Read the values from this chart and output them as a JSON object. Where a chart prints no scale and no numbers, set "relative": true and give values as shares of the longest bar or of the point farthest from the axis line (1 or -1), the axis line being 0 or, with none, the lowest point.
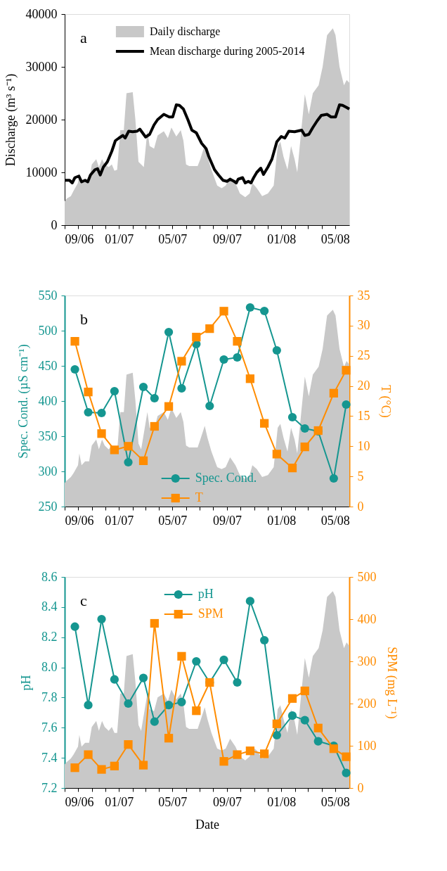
{
  "chart_data": [
    {
      "type": "area",
      "xlim": [
        "2006-09-01",
        "2008-06-02"
      ],
      "xticks": [
        {
          "value": "2006-09",
          "label": "09/06"
        },
        {
          "value": "2006-10",
          "label": null
        },
        {
          "value": "2006-11",
          "label": null
        },
        {
          "value": "2006-12",
          "label": null
        },
        {
          "value": "2007-01",
          "label": "01/07"
        },
        {
          "value": "2007-02",
          "label": null
        },
        {
          "value": "2007-03",
          "label": null
        },
        {
          "value": "2007-04",
          "label": null
        },
        {
          "value": "2007-05",
          "label": "05/07"
        },
        {
          "value": "2007-06",
          "label": null
        },
        {
          "value": "2007-07",
          "label": null
        },
        {
          "value": "2007-08",
          "label": null
        },
        {
          "value": "2007-09",
          "label": "09/07"
        },
        {
          "value": "2007-10",
          "label": null
        },
        {
          "value": "2007-11",
          "label": null
        },
        {
          "value": "2007-12",
          "label": null
        },
        {
          "value": "2008-01",
          "label": "01/08"
        },
        {
          "value": "2008-02",
          "label": null
        },
        {
          "value": "2008-03",
          "label": null
        },
        {
          "value": "2008-04",
          "label": null
        },
        {
          "value": "2008-05",
          "label": "05/08"
        }
      ],
      "ylim": [
        0,
        40000
      ],
      "yticks": [
        0,
        10000,
        20000,
        30000,
        40000
      ],
      "ylabel": "Discharge (m³ s⁻¹)",
      "legend": "top",
      "grid": false,
      "annotations": [
        "a"
      ],
      "series": [
        {
          "name": "Daily discharge",
          "type": "area",
          "color": "#c8c8c8",
          "x": [
            "2006-09-01",
            "2006-09-05",
            "2006-09-15",
            "2006-09-21",
            "2006-10-01",
            "2006-10-04",
            "2006-10-09",
            "2006-10-17",
            "2006-10-26",
            "2006-11-01",
            "2006-11-11",
            "2006-11-17",
            "2006-11-24",
            "2006-11-30",
            "2006-12-09",
            "2006-12-16",
            "2006-12-22",
            "2006-12-28",
            "2007-01-04",
            "2007-01-12",
            "2007-01-18",
            "2007-02-01",
            "2007-02-07",
            "2007-02-14",
            "2007-02-26",
            "2007-03-06",
            "2007-03-11",
            "2007-03-21",
            "2007-03-29",
            "2007-04-12",
            "2007-04-21",
            "2007-04-29",
            "2007-05-10",
            "2007-05-20",
            "2007-05-26",
            "2007-06-01",
            "2007-06-08",
            "2007-06-27",
            "2007-07-03",
            "2007-07-13",
            "2007-07-19",
            "2007-07-28",
            "2007-08-10",
            "2007-08-20",
            "2007-08-29",
            "2007-09-08",
            "2007-09-20",
            "2007-09-30",
            "2007-10-12",
            "2007-10-22",
            "2007-10-28",
            "2007-11-07",
            "2007-11-19",
            "2007-12-02",
            "2007-12-15",
            "2007-12-24",
            "2007-12-30",
            "2008-01-06",
            "2008-01-15",
            "2008-01-23",
            "2008-01-31",
            "2008-02-06",
            "2008-02-15",
            "2008-02-23",
            "2008-03-03",
            "2008-03-12",
            "2008-03-25",
            "2008-04-03",
            "2008-04-13",
            "2008-04-26",
            "2008-05-02",
            "2008-05-11",
            "2008-05-21",
            "2008-05-27",
            "2008-06-02"
          ],
          "values": [
            4500,
            5000,
            5500,
            6500,
            8000,
            10000,
            8000,
            8500,
            8500,
            11500,
            12500,
            11000,
            12500,
            11500,
            11000,
            11500,
            10300,
            10500,
            18000,
            18000,
            25000,
            25200,
            20000,
            12000,
            11000,
            18000,
            15000,
            14500,
            17000,
            17800,
            16500,
            18500,
            16800,
            18000,
            16000,
            11500,
            11200,
            11200,
            12500,
            15200,
            13000,
            10500,
            7500,
            7000,
            7500,
            9200,
            8000,
            6000,
            5300,
            6000,
            8000,
            7000,
            5500,
            6000,
            7500,
            15000,
            15800,
            13000,
            10500,
            15000,
            12500,
            10000,
            18000,
            24800,
            21000,
            25000,
            26500,
            30000,
            36000,
            37300,
            36000,
            30000,
            26500,
            27500,
            27000
          ]
        },
        {
          "name": "Mean discharge during 2005-2014",
          "type": "line",
          "color": "#000000",
          "marker": "none",
          "x": [
            "2006-09-01",
            "2006-09-12",
            "2006-09-18",
            "2006-09-24",
            "2006-10-03",
            "2006-10-09",
            "2006-10-17",
            "2006-10-23",
            "2006-10-29",
            "2006-11-08",
            "2006-11-14",
            "2006-11-20",
            "2006-11-27",
            "2006-12-06",
            "2006-12-16",
            "2006-12-24",
            "2007-01-01",
            "2007-01-10",
            "2007-01-15",
            "2007-01-23",
            "2007-02-01",
            "2007-02-11",
            "2007-02-17",
            "2007-03-02",
            "2007-03-11",
            "2007-03-21",
            "2007-03-29",
            "2007-04-12",
            "2007-04-24",
            "2007-05-02",
            "2007-05-10",
            "2007-05-17",
            "2007-05-26",
            "2007-06-05",
            "2007-06-14",
            "2007-06-24",
            "2007-06-30",
            "2007-07-06",
            "2007-07-16",
            "2007-07-22",
            "2007-08-04",
            "2007-08-13",
            "2007-08-23",
            "2007-09-01",
            "2007-09-08",
            "2007-09-17",
            "2007-09-22",
            "2007-09-26",
            "2007-10-06",
            "2007-10-12",
            "2007-10-19",
            "2007-10-25",
            "2007-10-31",
            "2007-11-07",
            "2007-11-16",
            "2007-11-22",
            "2007-12-02",
            "2007-12-11",
            "2007-12-22",
            "2008-01-01",
            "2008-01-09",
            "2008-01-18",
            "2008-01-31",
            "2008-02-16",
            "2008-02-23",
            "2008-03-03",
            "2008-03-12",
            "2008-03-22",
            "2008-03-31",
            "2008-04-13",
            "2008-04-22",
            "2008-05-02",
            "2008-05-11",
            "2008-05-18",
            "2008-05-27",
            "2008-06-02"
          ],
          "values": [
            8500,
            8500,
            8000,
            9000,
            9300,
            8200,
            8500,
            8200,
            9500,
            10500,
            10700,
            9500,
            11000,
            12000,
            14000,
            16000,
            16500,
            17000,
            16500,
            17800,
            17700,
            17800,
            18200,
            16700,
            17200,
            19000,
            20000,
            21000,
            20500,
            20500,
            22800,
            22700,
            22000,
            20000,
            18000,
            17500,
            16500,
            15500,
            14500,
            13000,
            10500,
            9500,
            8500,
            8300,
            8700,
            8300,
            8000,
            8700,
            9000,
            8000,
            8300,
            8000,
            9000,
            10000,
            10800,
            9600,
            11000,
            12500,
            15800,
            16800,
            16500,
            17800,
            17700,
            18000,
            17000,
            17200,
            18500,
            19800,
            20800,
            21000,
            20500,
            20500,
            22800,
            22700,
            22300,
            22000
          ]
        }
      ]
    },
    {
      "type": "area",
      "relative": true,
      "tick_labels": false,
      "xlim": [
        "2006-09-01",
        "2008-06-02"
      ],
      "series": [
        {
          "color": "#c8c8c8",
          "x": [
            "2006-09-01",
            "2006-09-05",
            "2006-09-15",
            "2006-09-21",
            "2006-10-01",
            "2006-10-04",
            "2006-10-09",
            "2006-10-17",
            "2006-10-26",
            "2006-11-01",
            "2006-11-11",
            "2006-11-17",
            "2006-11-24",
            "2006-11-30",
            "2006-12-09",
            "2006-12-16",
            "2006-12-22",
            "2006-12-28",
            "2007-01-04",
            "2007-01-12",
            "2007-01-18",
            "2007-02-01",
            "2007-02-07",
            "2007-02-14",
            "2007-02-20",
            "2007-03-06",
            "2007-03-11",
            "2007-03-21",
            "2007-03-29",
            "2007-04-12",
            "2007-04-21",
            "2007-04-29",
            "2007-05-10",
            "2007-05-20",
            "2007-05-26",
            "2007-06-01",
            "2007-06-08",
            "2007-06-27",
            "2007-07-03",
            "2007-07-13",
            "2007-07-19",
            "2007-07-28",
            "2007-08-10",
            "2007-08-20",
            "2007-08-29",
            "2007-09-08",
            "2007-09-20",
            "2007-09-30",
            "2007-10-12",
            "2007-10-22",
            "2007-10-28",
            "2007-11-07",
            "2007-11-19",
            "2007-12-02",
            "2007-12-15",
            "2007-12-24",
            "2007-12-30",
            "2008-01-06",
            "2008-01-15",
            "2008-01-23",
            "2008-01-31",
            "2008-02-06",
            "2008-02-15",
            "2008-02-23",
            "2008-03-03",
            "2008-03-12",
            "2008-03-25",
            "2008-04-03",
            "2008-04-13",
            "2008-04-26",
            "2008-05-02",
            "2008-05-11",
            "2008-05-21",
            "2008-05-27",
            "2008-06-02"
          ],
          "values": [
            0.12,
            0.13,
            0.15,
            0.17,
            0.21,
            0.27,
            0.21,
            0.23,
            0.23,
            0.31,
            0.34,
            0.29,
            0.34,
            0.31,
            0.29,
            0.31,
            0.28,
            0.28,
            0.48,
            0.48,
            0.67,
            0.68,
            0.54,
            0.32,
            0.29,
            0.48,
            0.4,
            0.39,
            0.46,
            0.48,
            0.44,
            0.5,
            0.45,
            0.48,
            0.43,
            0.31,
            0.3,
            0.3,
            0.34,
            0.41,
            0.35,
            0.28,
            0.2,
            0.19,
            0.2,
            0.25,
            0.21,
            0.16,
            0.14,
            0.16,
            0.21,
            0.19,
            0.15,
            0.16,
            0.2,
            0.4,
            0.42,
            0.35,
            0.28,
            0.4,
            0.34,
            0.27,
            0.48,
            0.66,
            0.56,
            0.67,
            0.71,
            0.8,
            0.97,
            1,
            0.97,
            0.8,
            0.71,
            0.74,
            0.72
          ]
        }
      ]
    },
    {
      "type": "line",
      "xlim": [
        "2006-09-01",
        "2008-06-02"
      ],
      "xticks": [
        {
          "value": "2006-09",
          "label": "09/06"
        },
        {
          "value": "2006-10",
          "label": null
        },
        {
          "value": "2006-11",
          "label": null
        },
        {
          "value": "2006-12",
          "label": null
        },
        {
          "value": "2007-01",
          "label": "01/07"
        },
        {
          "value": "2007-02",
          "label": null
        },
        {
          "value": "2007-03",
          "label": null
        },
        {
          "value": "2007-04",
          "label": null
        },
        {
          "value": "2007-05",
          "label": "05/07"
        },
        {
          "value": "2007-06",
          "label": null
        },
        {
          "value": "2007-07",
          "label": null
        },
        {
          "value": "2007-08",
          "label": null
        },
        {
          "value": "2007-09",
          "label": "09/07"
        },
        {
          "value": "2007-10",
          "label": null
        },
        {
          "value": "2007-11",
          "label": null
        },
        {
          "value": "2007-12",
          "label": null
        },
        {
          "value": "2008-01",
          "label": "01/08"
        },
        {
          "value": "2008-02",
          "label": null
        },
        {
          "value": "2008-03",
          "label": null
        },
        {
          "value": "2008-04",
          "label": null
        },
        {
          "value": "2008-05",
          "label": "05/08"
        }
      ],
      "ylim": [
        250,
        550
      ],
      "yticks": [
        250,
        300,
        350,
        400,
        450,
        500,
        550
      ],
      "ylabel": "Spec. Cond. (µS cm⁻¹)",
      "y2lim": [
        0,
        35
      ],
      "y2ticks": [
        0,
        5,
        10,
        15,
        20,
        25,
        30,
        35
      ],
      "y2label": "T (°C)",
      "legend": "bottom",
      "grid": false,
      "annotations": [
        "b"
      ],
      "series": [
        {
          "name": "Spec. Cond.",
          "color": "#159690",
          "marker": "circle",
          "x": [
            "2006-09-24",
            "2006-10-24",
            "2006-11-23",
            "2006-12-22",
            "2007-01-22",
            "2007-02-25",
            "2007-03-22",
            "2007-04-23",
            "2007-05-22",
            "2007-06-24",
            "2007-07-24",
            "2007-08-25",
            "2007-09-24",
            "2007-10-23",
            "2007-11-24",
            "2007-12-22",
            "2008-01-26",
            "2008-02-23",
            "2008-03-24",
            "2008-04-28",
            "2008-05-26"
          ],
          "values": [
            445,
            384,
            383,
            414,
            313,
            420,
            404,
            498,
            418,
            481,
            393,
            459,
            462,
            533,
            528,
            472,
            377,
            361,
            357,
            290,
            395
          ]
        },
        {
          "name": "T",
          "axis": "y2",
          "color": "#ff8c00",
          "marker": "square",
          "x": [
            "2006-09-24",
            "2006-10-24",
            "2006-11-23",
            "2006-12-22",
            "2007-01-22",
            "2007-02-25",
            "2007-03-22",
            "2007-04-23",
            "2007-05-22",
            "2007-06-24",
            "2007-07-24",
            "2007-08-25",
            "2007-09-24",
            "2007-10-23",
            "2007-11-24",
            "2007-12-22",
            "2008-01-26",
            "2008-02-23",
            "2008-03-24",
            "2008-04-28",
            "2008-05-26"
          ],
          "values": [
            27.4,
            19.0,
            12.1,
            9.4,
            10.0,
            7.6,
            13.3,
            16.6,
            24.1,
            28.1,
            29.5,
            32.4,
            27.4,
            21.2,
            13.8,
            8.7,
            6.4,
            9.9,
            12.6,
            18.8,
            22.6
          ]
        }
      ]
    },
    {
      "type": "area",
      "relative": true,
      "tick_labels": false,
      "xlim": [
        "2006-09-01",
        "2008-06-02"
      ],
      "series": [
        {
          "color": "#c8c8c8",
          "x": [
            "2006-09-01",
            "2006-09-05",
            "2006-09-15",
            "2006-09-21",
            "2006-10-01",
            "2006-10-04",
            "2006-10-09",
            "2006-10-17",
            "2006-10-26",
            "2006-11-01",
            "2006-11-11",
            "2006-11-17",
            "2006-11-24",
            "2006-11-30",
            "2006-12-09",
            "2006-12-16",
            "2006-12-22",
            "2006-12-28",
            "2007-01-04",
            "2007-01-12",
            "2007-01-18",
            "2007-02-01",
            "2007-02-07",
            "2007-02-14",
            "2007-02-20",
            "2007-03-06",
            "2007-03-11",
            "2007-03-21",
            "2007-03-29",
            "2007-04-12",
            "2007-04-21",
            "2007-04-29",
            "2007-05-10",
            "2007-05-20",
            "2007-05-26",
            "2007-06-01",
            "2007-06-08",
            "2007-06-27",
            "2007-07-03",
            "2007-07-13",
            "2007-07-19",
            "2007-07-28",
            "2007-08-10",
            "2007-08-20",
            "2007-08-29",
            "2007-09-08",
            "2007-09-20",
            "2007-09-30",
            "2007-10-12",
            "2007-10-22",
            "2007-10-28",
            "2007-11-07",
            "2007-11-19",
            "2007-12-02",
            "2007-12-15",
            "2007-12-24",
            "2007-12-30",
            "2008-01-06",
            "2008-01-15",
            "2008-01-23",
            "2008-01-31",
            "2008-02-06",
            "2008-02-15",
            "2008-02-23",
            "2008-03-03",
            "2008-03-12",
            "2008-03-25",
            "2008-04-03",
            "2008-04-13",
            "2008-04-26",
            "2008-05-02",
            "2008-05-11",
            "2008-05-21",
            "2008-05-27",
            "2008-06-02"
          ],
          "values": [
            0.12,
            0.13,
            0.15,
            0.17,
            0.21,
            0.27,
            0.21,
            0.23,
            0.23,
            0.31,
            0.34,
            0.29,
            0.34,
            0.31,
            0.29,
            0.31,
            0.28,
            0.28,
            0.48,
            0.48,
            0.67,
            0.68,
            0.54,
            0.32,
            0.29,
            0.48,
            0.4,
            0.39,
            0.46,
            0.48,
            0.44,
            0.5,
            0.45,
            0.48,
            0.43,
            0.31,
            0.3,
            0.3,
            0.34,
            0.41,
            0.35,
            0.28,
            0.2,
            0.19,
            0.2,
            0.25,
            0.21,
            0.16,
            0.14,
            0.16,
            0.21,
            0.19,
            0.15,
            0.16,
            0.2,
            0.4,
            0.42,
            0.35,
            0.28,
            0.4,
            0.34,
            0.27,
            0.48,
            0.66,
            0.56,
            0.67,
            0.71,
            0.8,
            0.97,
            1,
            0.97,
            0.8,
            0.71,
            0.74,
            0.72
          ]
        }
      ]
    },
    {
      "type": "line",
      "xlim": [
        "2006-09-01",
        "2008-06-02"
      ],
      "xticks": [
        {
          "value": "2006-09",
          "label": "09/06"
        },
        {
          "value": "2006-10",
          "label": null
        },
        {
          "value": "2006-11",
          "label": null
        },
        {
          "value": "2006-12",
          "label": null
        },
        {
          "value": "2007-01",
          "label": "01/07"
        },
        {
          "value": "2007-02",
          "label": null
        },
        {
          "value": "2007-03",
          "label": null
        },
        {
          "value": "2007-04",
          "label": null
        },
        {
          "value": "2007-05",
          "label": "05/07"
        },
        {
          "value": "2007-06",
          "label": null
        },
        {
          "value": "2007-07",
          "label": null
        },
        {
          "value": "2007-08",
          "label": null
        },
        {
          "value": "2007-09",
          "label": "09/07"
        },
        {
          "value": "2007-10",
          "label": null
        },
        {
          "value": "2007-11",
          "label": null
        },
        {
          "value": "2007-12",
          "label": null
        },
        {
          "value": "2008-01",
          "label": "01/08"
        },
        {
          "value": "2008-02",
          "label": null
        },
        {
          "value": "2008-03",
          "label": null
        },
        {
          "value": "2008-04",
          "label": null
        },
        {
          "value": "2008-05",
          "label": "05/08"
        }
      ],
      "xlabel": "Date",
      "ylim": [
        7.2,
        8.6
      ],
      "yticks": [
        {
          "value": 7.2,
          "label": "7.2"
        },
        {
          "value": 7.4,
          "label": "7.4"
        },
        {
          "value": 7.6,
          "label": "7.6"
        },
        {
          "value": 7.8,
          "label": "7.8"
        },
        {
          "value": 8.0,
          "label": "8.0"
        },
        {
          "value": 8.2,
          "label": "8.2"
        },
        {
          "value": 8.4,
          "label": "8.4"
        },
        {
          "value": 8.6,
          "label": "8.6"
        }
      ],
      "ylabel": "pH",
      "y2lim": [
        0,
        500
      ],
      "y2ticks": [
        0,
        100,
        200,
        300,
        400,
        500
      ],
      "y2label": "SPM (mg L⁻¹)",
      "legend": "top",
      "grid": false,
      "annotations": [
        "c"
      ],
      "series": [
        {
          "name": "pH",
          "color": "#159690",
          "marker": "circle",
          "x": [
            "2006-09-24",
            "2006-10-24",
            "2006-11-23",
            "2006-12-22",
            "2007-01-22",
            "2007-02-25",
            "2007-03-22",
            "2007-04-23",
            "2007-05-22",
            "2007-06-24",
            "2007-07-24",
            "2007-08-25",
            "2007-09-24",
            "2007-10-23",
            "2007-11-24",
            "2007-12-22",
            "2008-01-26",
            "2008-02-23",
            "2008-03-24",
            "2008-04-28",
            "2008-05-26"
          ],
          "values": [
            8.27,
            7.75,
            8.32,
            7.92,
            7.76,
            7.93,
            7.64,
            7.75,
            7.77,
            8.04,
            7.9,
            8.05,
            7.9,
            8.44,
            8.18,
            7.55,
            7.68,
            7.65,
            7.51,
            7.48,
            7.3
          ]
        },
        {
          "name": "SPM",
          "axis": "y2",
          "color": "#ff8c00",
          "marker": "square",
          "x": [
            "2006-09-24",
            "2006-10-24",
            "2006-11-23",
            "2006-12-22",
            "2007-01-22",
            "2007-02-25",
            "2007-03-22",
            "2007-04-23",
            "2007-05-22",
            "2007-06-24",
            "2007-07-24",
            "2007-08-25",
            "2007-09-24",
            "2007-10-23",
            "2007-11-24",
            "2007-12-22",
            "2008-01-26",
            "2008-02-23",
            "2008-03-24",
            "2008-04-28",
            "2008-05-26"
          ],
          "values": [
            48,
            79,
            44,
            52,
            103,
            54,
            390,
            118,
            312,
            183,
            250,
            63,
            79,
            88,
            81,
            152,
            212,
            230,
            142,
            93,
            74
          ]
        }
      ]
    }
  ]
}
